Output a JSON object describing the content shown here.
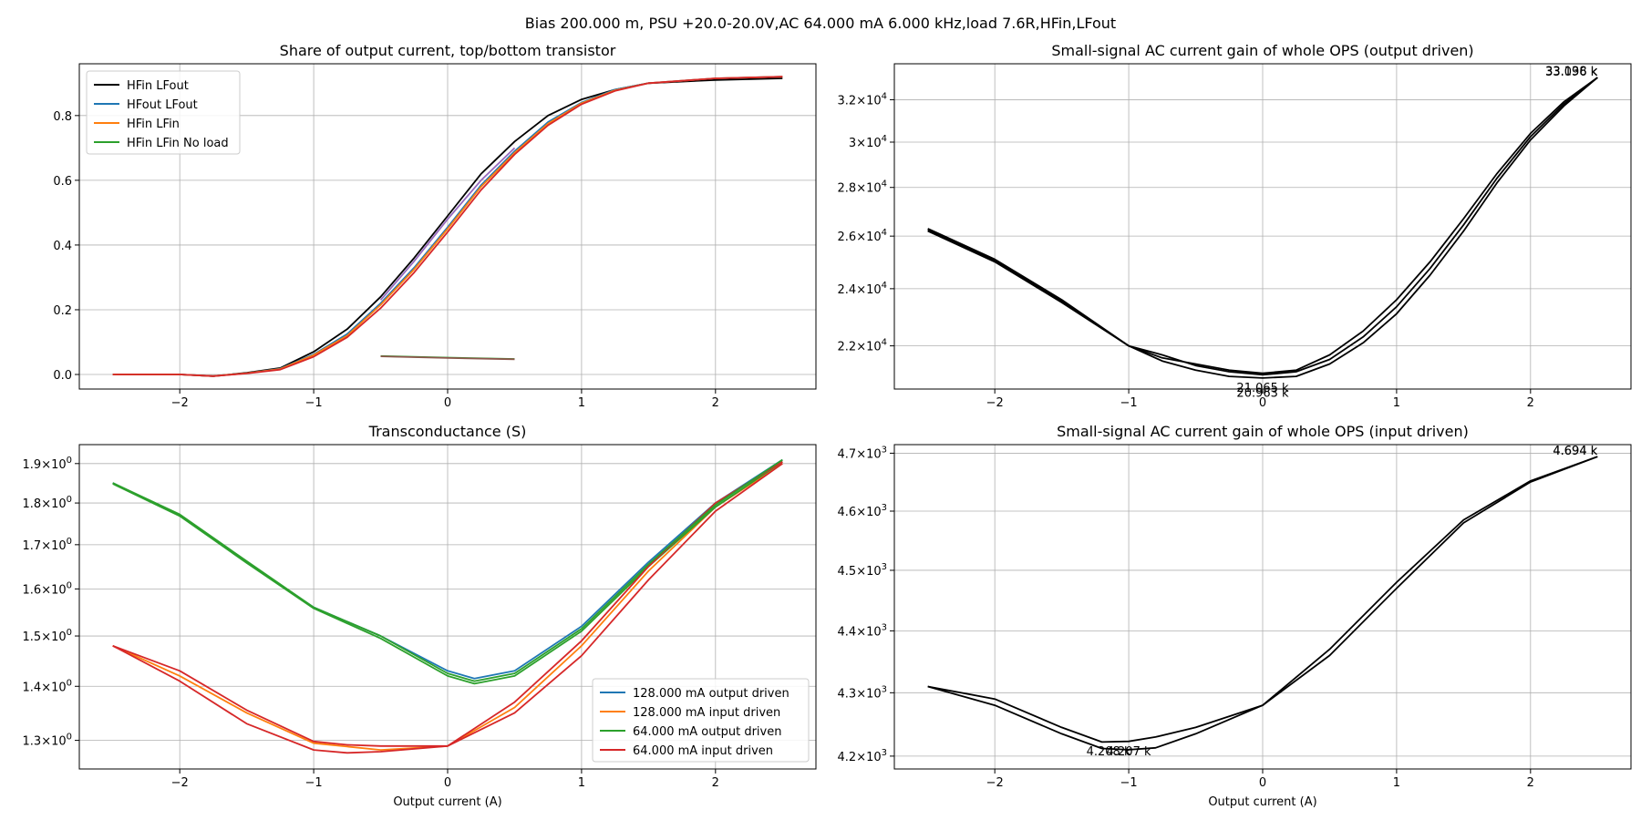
{
  "figure": {
    "suptitle": "Bias 200.000 m, PSU +20.0-20.0V,AC 64.000 mA 6.000 kHz,load 7.6R,HFin,LFout"
  },
  "chart_data": [
    {
      "id": "share",
      "type": "line",
      "title": "Share of output current, top/bottom transistor",
      "xlabel": "",
      "ylabel": "",
      "xlim": [
        -2.75,
        2.75
      ],
      "ylim": [
        -0.045,
        0.96
      ],
      "yscale": "linear",
      "grid": true,
      "legend": "top-left",
      "xticks": [
        {
          "v": -2,
          "label": "−2"
        },
        {
          "v": -1,
          "label": "−1"
        },
        {
          "v": 0,
          "label": "0"
        },
        {
          "v": 1,
          "label": "1"
        },
        {
          "v": 2,
          "label": "2"
        }
      ],
      "yticks": [
        {
          "v": 0.0,
          "label": "0.0"
        },
        {
          "v": 0.2,
          "label": "0.2"
        },
        {
          "v": 0.4,
          "label": "0.4"
        },
        {
          "v": 0.6,
          "label": "0.6"
        },
        {
          "v": 0.8,
          "label": "0.8"
        }
      ],
      "series": [
        {
          "name": "HFin LFout",
          "color": "#000000",
          "legend": true,
          "x": [
            -2.5,
            -2.0,
            -1.75,
            -1.5,
            -1.25,
            -1.0,
            -0.75,
            -0.5,
            -0.25,
            0.0,
            0.25,
            0.5,
            0.75,
            1.0,
            1.25,
            1.5,
            2.0,
            2.5
          ],
          "y": [
            0.0,
            0.0,
            -0.005,
            0.005,
            0.02,
            0.07,
            0.14,
            0.24,
            0.36,
            0.49,
            0.62,
            0.72,
            0.8,
            0.85,
            0.88,
            0.9,
            0.91,
            0.915
          ]
        },
        {
          "name": "HFout LFout",
          "color": "#1f77b4",
          "legend": true,
          "x": [
            -2.5,
            -2.0,
            -1.75,
            -1.5,
            -1.25,
            -1.0,
            -0.75,
            -0.5,
            -0.25,
            0.0,
            0.25,
            0.5,
            0.75,
            1.0,
            1.25,
            1.5,
            2.0,
            2.5
          ],
          "y": [
            0.0,
            0.0,
            -0.005,
            0.004,
            0.018,
            0.062,
            0.125,
            0.22,
            0.33,
            0.455,
            0.585,
            0.69,
            0.78,
            0.84,
            0.88,
            0.9,
            0.915,
            0.92
          ]
        },
        {
          "name": "HFin LFin",
          "color": "#ff7f0e",
          "legend": true,
          "x": [
            -2.5,
            -2.0,
            -1.75,
            -1.5,
            -1.25,
            -1.0,
            -0.75,
            -0.5,
            -0.25,
            0.0,
            0.25,
            0.5,
            0.75,
            1.0,
            1.25,
            1.5,
            2.0,
            2.5
          ],
          "y": [
            0.0,
            0.0,
            -0.005,
            0.004,
            0.017,
            0.06,
            0.12,
            0.215,
            0.325,
            0.45,
            0.58,
            0.685,
            0.775,
            0.838,
            0.878,
            0.9,
            0.915,
            0.92
          ]
        },
        {
          "name": "HFin LFin No load",
          "color": "#2ca02c",
          "legend": true,
          "x": [
            -0.5,
            0.0,
            0.5
          ],
          "y": [
            0.057,
            0.052,
            0.048
          ]
        },
        {
          "name": "",
          "color": "#9467bd",
          "legend": false,
          "x": [
            -0.5,
            -0.25,
            0.0,
            0.25,
            0.5
          ],
          "y": [
            0.23,
            0.35,
            0.48,
            0.6,
            0.7
          ]
        },
        {
          "name": "",
          "color": "#8c564b",
          "legend": false,
          "x": [
            -0.5,
            0.0,
            0.5
          ],
          "y": [
            0.056,
            0.051,
            0.047
          ]
        },
        {
          "name": "",
          "color": "#d62728",
          "legend": false,
          "x": [
            -2.5,
            -2.0,
            -1.75,
            -1.5,
            -1.25,
            -1.0,
            -0.75,
            -0.5,
            -0.25,
            0.0,
            0.25,
            0.5,
            0.75,
            1.0,
            1.25,
            1.5,
            2.0,
            2.5
          ],
          "y": [
            0.0,
            0.0,
            -0.005,
            0.003,
            0.015,
            0.055,
            0.115,
            0.205,
            0.315,
            0.44,
            0.57,
            0.68,
            0.77,
            0.835,
            0.876,
            0.9,
            0.915,
            0.92
          ]
        }
      ]
    },
    {
      "id": "gain_out",
      "type": "line",
      "title": "Small-signal AC current gain of whole OPS (output driven)",
      "xlabel": "",
      "ylabel": "",
      "xlim": [
        -2.75,
        2.75
      ],
      "ylim": [
        20600,
        33800
      ],
      "yscale": "log",
      "grid": true,
      "legend": "none",
      "xticks": [
        {
          "v": -2,
          "label": "−2"
        },
        {
          "v": -1,
          "label": "−1"
        },
        {
          "v": 0,
          "label": "0"
        },
        {
          "v": 1,
          "label": "1"
        },
        {
          "v": 2,
          "label": "2"
        }
      ],
      "yticks": [
        {
          "v": 22000,
          "mant": "2.2",
          "exp": "4"
        },
        {
          "v": 24000,
          "mant": "2.4",
          "exp": "4"
        },
        {
          "v": 26000,
          "mant": "2.6",
          "exp": "4"
        },
        {
          "v": 28000,
          "mant": "2.8",
          "exp": "4"
        },
        {
          "v": 30000,
          "mant": "3",
          "exp": "4"
        },
        {
          "v": 32000,
          "mant": "3.2",
          "exp": "4"
        }
      ],
      "annotations": [
        {
          "text": "33.096 k",
          "x": 2.5,
          "y": 33096,
          "anchor": "end",
          "dy": -2
        },
        {
          "text": "33.138 k",
          "x": 2.5,
          "y": 33138,
          "anchor": "end",
          "dy": -2
        },
        {
          "text": "21.065 k",
          "x": 0.0,
          "y": 20800,
          "anchor": "middle",
          "dy": 10
        },
        {
          "text": "20.963 k",
          "x": 0.0,
          "y": 20700,
          "anchor": "middle",
          "dy": 12
        }
      ],
      "series": [
        {
          "name": "",
          "color": "#000000",
          "legend": false,
          "x": [
            -2.5,
            -2.0,
            -1.5,
            -1.0,
            -0.75,
            -0.5,
            -0.25,
            0.0,
            0.25,
            0.5,
            0.75,
            1.0,
            1.25,
            1.5,
            1.75,
            2.0,
            2.25,
            2.5
          ],
          "y": [
            26300,
            25100,
            23600,
            22000,
            21600,
            21400,
            21200,
            21100,
            21200,
            21700,
            22500,
            23600,
            25000,
            26700,
            28600,
            30400,
            31900,
            33100
          ]
        },
        {
          "name": "",
          "color": "#000000",
          "legend": false,
          "x": [
            -2.5,
            -2.0,
            -1.5,
            -1.0,
            -0.75,
            -0.5,
            -0.25,
            0.0,
            0.25,
            0.5,
            0.75,
            1.0,
            1.25,
            1.5,
            1.75,
            2.0,
            2.25,
            2.5
          ],
          "y": [
            26200,
            25000,
            23500,
            22000,
            21500,
            21200,
            21000,
            20950,
            21000,
            21400,
            22100,
            23100,
            24500,
            26200,
            28200,
            30100,
            31700,
            33100
          ]
        },
        {
          "name": "",
          "color": "#000000",
          "legend": false,
          "x": [
            -2.5,
            -2.0,
            -1.5,
            -1.0,
            -0.75,
            -0.5,
            -0.25,
            0.0,
            0.25,
            0.5,
            0.75,
            1.0,
            1.25,
            1.5,
            1.75,
            2.0,
            2.25,
            2.5
          ],
          "y": [
            26250,
            25050,
            23550,
            22000,
            21700,
            21350,
            21150,
            21050,
            21150,
            21550,
            22300,
            23350,
            24750,
            26450,
            28400,
            30250,
            31800,
            33100
          ]
        }
      ]
    },
    {
      "id": "gm",
      "type": "line",
      "title": "Transconductance (S)",
      "xlabel": "Output current (A)",
      "ylabel": "",
      "xlim": [
        -2.75,
        2.75
      ],
      "ylim": [
        1.25,
        1.95
      ],
      "yscale": "log",
      "grid": true,
      "legend": "bottom-right",
      "xticks": [
        {
          "v": -2,
          "label": "−2"
        },
        {
          "v": -1,
          "label": "−1"
        },
        {
          "v": 0,
          "label": "0"
        },
        {
          "v": 1,
          "label": "1"
        },
        {
          "v": 2,
          "label": "2"
        }
      ],
      "yticks": [
        {
          "v": 1.3,
          "mant": "1.3",
          "exp": "0"
        },
        {
          "v": 1.4,
          "mant": "1.4",
          "exp": "0"
        },
        {
          "v": 1.5,
          "mant": "1.5",
          "exp": "0"
        },
        {
          "v": 1.6,
          "mant": "1.6",
          "exp": "0"
        },
        {
          "v": 1.7,
          "mant": "1.7",
          "exp": "0"
        },
        {
          "v": 1.8,
          "mant": "1.8",
          "exp": "0"
        },
        {
          "v": 1.9,
          "mant": "1.9",
          "exp": "0"
        }
      ],
      "series": [
        {
          "name": "128.000 mA output driven",
          "color": "#1f77b4",
          "legend": true,
          "x": [
            -2.5,
            -2.0,
            -1.5,
            -1.0,
            -0.5,
            0.0,
            0.2,
            0.5,
            1.0,
            1.5,
            2.0,
            2.5
          ],
          "y": [
            1.85,
            1.77,
            1.66,
            1.56,
            1.5,
            1.43,
            1.415,
            1.43,
            1.52,
            1.66,
            1.8,
            1.91
          ]
        },
        {
          "name": "128.000 mA input driven",
          "color": "#ff7f0e",
          "legend": true,
          "x": [
            -2.5,
            -2.0,
            -1.5,
            -1.0,
            -0.5,
            0.0,
            0.5,
            1.0,
            1.5,
            2.0,
            2.5
          ],
          "y": [
            1.48,
            1.42,
            1.35,
            1.295,
            1.283,
            1.29,
            1.36,
            1.48,
            1.64,
            1.79,
            1.9
          ]
        },
        {
          "name": "64.000 mA output driven",
          "color": "#2ca02c",
          "legend": true,
          "x": [
            -2.5,
            -2.0,
            -1.5,
            -1.0,
            -0.5,
            0.0,
            0.2,
            0.5,
            1.0,
            1.5,
            2.0,
            2.5
          ],
          "y": [
            1.848,
            1.768,
            1.658,
            1.558,
            1.495,
            1.42,
            1.405,
            1.42,
            1.51,
            1.65,
            1.79,
            1.905
          ]
        },
        {
          "name": "64.000 mA input driven",
          "color": "#d62728",
          "legend": true,
          "x": [
            -2.5,
            -2.0,
            -1.5,
            -1.0,
            -0.75,
            -0.5,
            0.0,
            0.5,
            1.0,
            1.5,
            2.0,
            2.5
          ],
          "y": [
            1.48,
            1.41,
            1.33,
            1.283,
            1.278,
            1.28,
            1.29,
            1.35,
            1.46,
            1.62,
            1.78,
            1.9
          ]
        },
        {
          "name": "",
          "color": "#d62728",
          "legend": false,
          "x": [
            -2.5,
            -2.0,
            -1.5,
            -1.0,
            -0.75,
            -0.5,
            0.0,
            0.5,
            1.0,
            1.5,
            2.0,
            2.5
          ],
          "y": [
            1.48,
            1.43,
            1.355,
            1.298,
            1.292,
            1.29,
            1.29,
            1.37,
            1.49,
            1.65,
            1.8,
            1.905
          ]
        },
        {
          "name": "",
          "color": "#2ca02c",
          "legend": false,
          "x": [
            -2.5,
            -2.0,
            -1.5,
            -1.0,
            -0.5,
            0.0,
            0.2,
            0.5,
            1.0,
            1.5,
            2.0,
            2.5
          ],
          "y": [
            1.85,
            1.772,
            1.662,
            1.56,
            1.5,
            1.425,
            1.41,
            1.425,
            1.515,
            1.655,
            1.795,
            1.91
          ]
        }
      ]
    },
    {
      "id": "gain_in",
      "type": "line",
      "title": "Small-signal AC current gain of whole OPS (input driven)",
      "xlabel": "Output current (A)",
      "ylabel": "",
      "xlim": [
        -2.75,
        2.75
      ],
      "ylim": [
        4180,
        4715
      ],
      "yscale": "log",
      "grid": true,
      "legend": "none",
      "xticks": [
        {
          "v": -2,
          "label": "−2"
        },
        {
          "v": -1,
          "label": "−1"
        },
        {
          "v": 0,
          "label": "0"
        },
        {
          "v": 1,
          "label": "1"
        },
        {
          "v": 2,
          "label": "2"
        }
      ],
      "yticks": [
        {
          "v": 4200,
          "mant": "4.2",
          "exp": "3"
        },
        {
          "v": 4300,
          "mant": "4.3",
          "exp": "3"
        },
        {
          "v": 4400,
          "mant": "4.4",
          "exp": "3"
        },
        {
          "v": 4500,
          "mant": "4.5",
          "exp": "3"
        },
        {
          "v": 4600,
          "mant": "4.6",
          "exp": "3"
        },
        {
          "v": 4700,
          "mant": "4.7",
          "exp": "3"
        }
      ],
      "annotations": [
        {
          "text": "4.694 k",
          "x": 2.5,
          "y": 4694,
          "anchor": "end",
          "dy": -2
        },
        {
          "text": "4.694 k",
          "x": 2.5,
          "y": 4694,
          "anchor": "end",
          "dy": -2
        },
        {
          "text": "4.207 k",
          "x": -1.0,
          "y": 4200,
          "anchor": "middle",
          "dy": -1
        },
        {
          "text": "4.208 k",
          "x": -1.15,
          "y": 4200,
          "anchor": "middle",
          "dy": -1
        }
      ],
      "series": [
        {
          "name": "",
          "color": "#000000",
          "legend": false,
          "x": [
            -2.5,
            -2.0,
            -1.5,
            -1.2,
            -1.0,
            -0.8,
            -0.5,
            0.0,
            0.5,
            1.0,
            1.5,
            2.0,
            2.5
          ],
          "y": [
            4310,
            4290,
            4245,
            4222,
            4223,
            4230,
            4245,
            4280,
            4360,
            4470,
            4580,
            4650,
            4694
          ]
        },
        {
          "name": "",
          "color": "#000000",
          "legend": false,
          "x": [
            -2.5,
            -2.0,
            -1.5,
            -1.2,
            -1.0,
            -0.8,
            -0.5,
            0.0,
            0.5,
            1.0,
            1.5,
            2.0,
            2.5
          ],
          "y": [
            4310,
            4280,
            4235,
            4212,
            4210,
            4213,
            4235,
            4280,
            4370,
            4480,
            4585,
            4652,
            4694
          ]
        }
      ]
    }
  ]
}
